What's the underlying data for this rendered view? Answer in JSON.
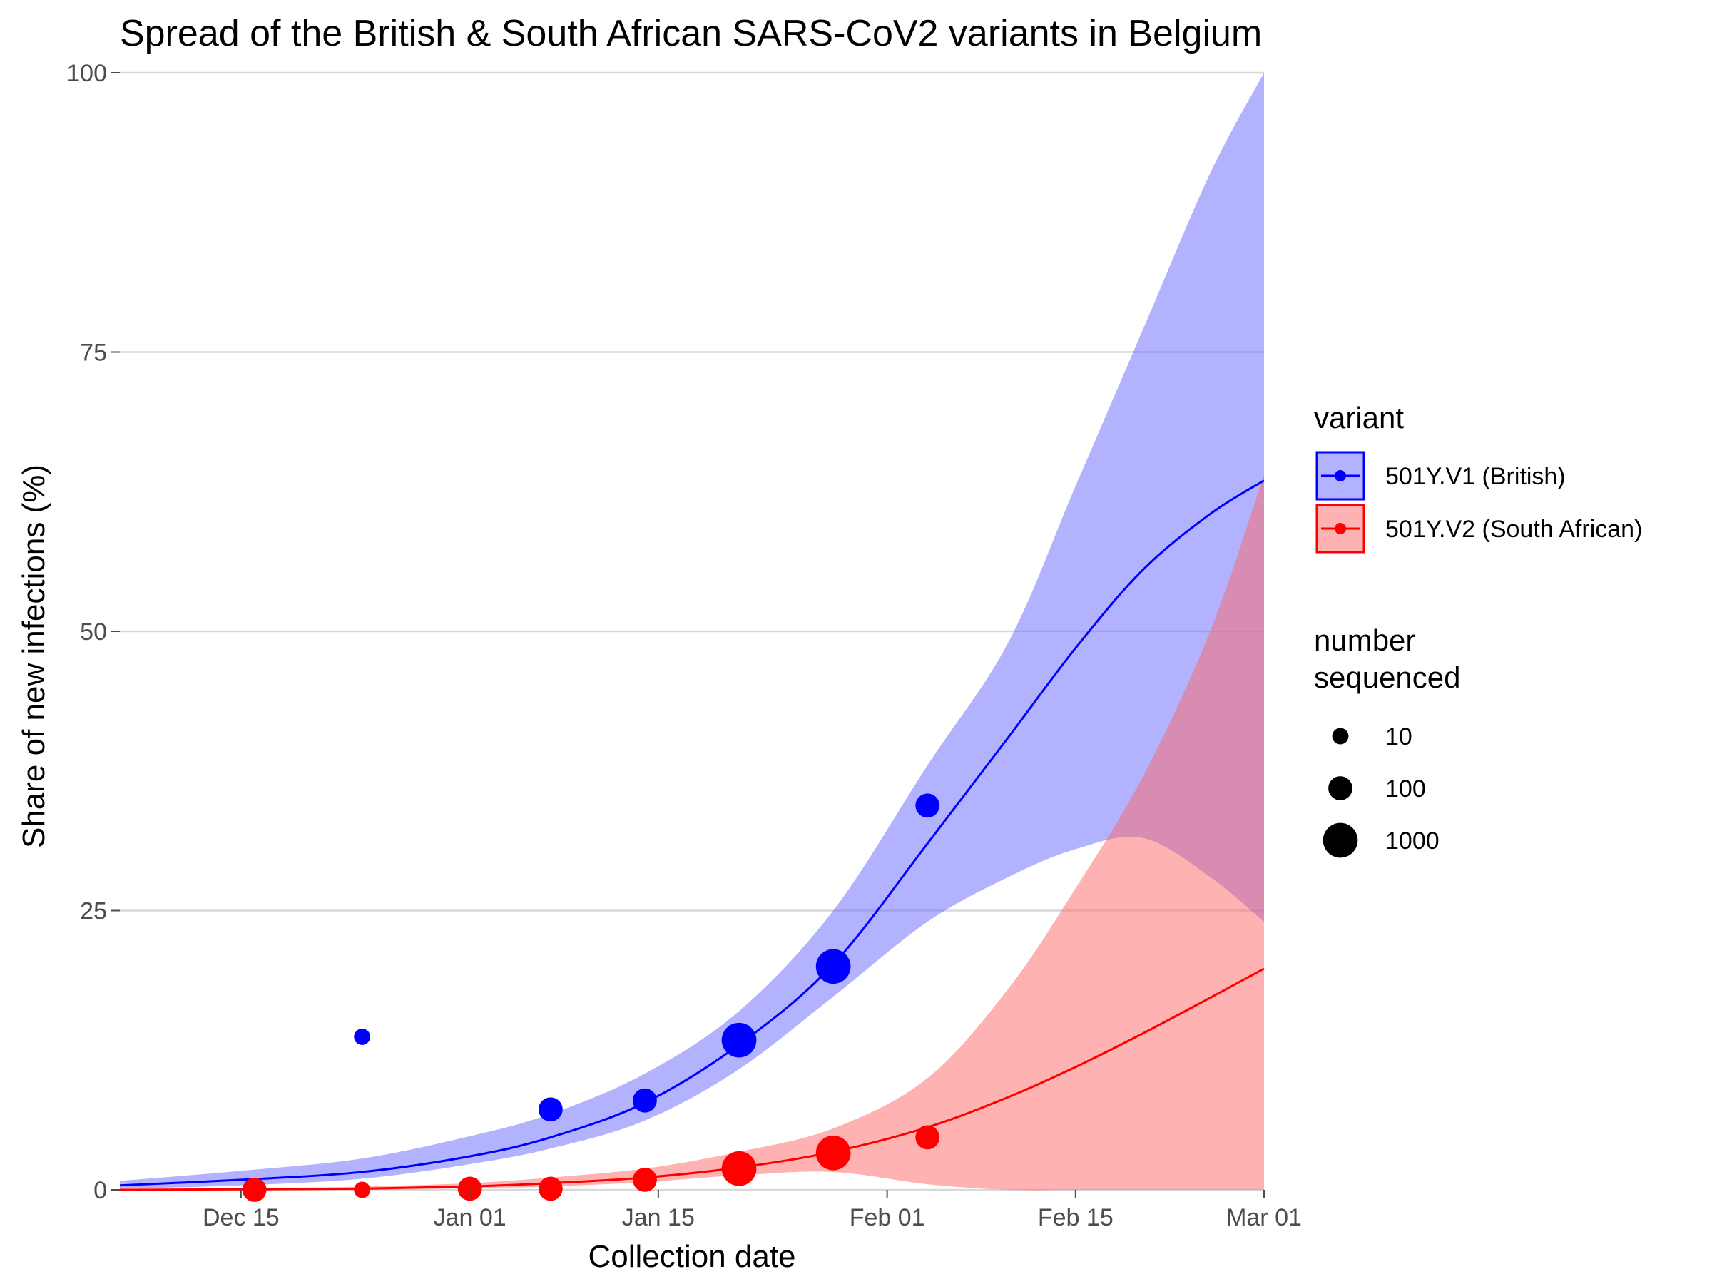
{
  "chart_data": {
    "type": "line",
    "title": "Spread of the British & South African SARS-CoV2 variants in Belgium",
    "xlabel": "Collection date",
    "ylabel": "Share of new infections (%)",
    "xlim": [
      "2020-12-06",
      "2021-03-01"
    ],
    "ylim": [
      0,
      100
    ],
    "x_ticks": [
      {
        "date": "2020-12-15",
        "label": "Dec 15"
      },
      {
        "date": "2021-01-01",
        "label": "Jan 01"
      },
      {
        "date": "2021-01-15",
        "label": "Jan 15"
      },
      {
        "date": "2021-02-01",
        "label": "Feb 01"
      },
      {
        "date": "2021-02-15",
        "label": "Feb 15"
      },
      {
        "date": "2021-03-01",
        "label": "Mar 01"
      }
    ],
    "y_ticks": [
      0,
      25,
      50,
      75,
      100
    ],
    "grid": "horizontal",
    "legend_placement": "right",
    "legend": {
      "variant_title": "variant",
      "size_title_lines": [
        "number",
        "sequenced"
      ],
      "size_entries": [
        {
          "label": "10",
          "n": 10
        },
        {
          "label": "100",
          "n": 100
        },
        {
          "label": "1000",
          "n": 1000
        }
      ]
    },
    "series": [
      {
        "name": "501Y.V1 (British)",
        "color": "#0000ff",
        "fill": "#6666ff",
        "fit": {
          "x": [
            "2020-12-06",
            "2020-12-15",
            "2020-12-24",
            "2021-01-01",
            "2021-01-07",
            "2021-01-14",
            "2021-01-21",
            "2021-01-28",
            "2021-02-04",
            "2021-02-10",
            "2021-02-15",
            "2021-02-20",
            "2021-02-25",
            "2021-03-01"
          ],
          "y": [
            0.4,
            0.9,
            1.6,
            3.0,
            4.7,
            7.8,
            13.0,
            20.2,
            31.0,
            40.5,
            48.5,
            55.5,
            60.5,
            63.5
          ],
          "lower": [
            0.1,
            0.4,
            1.0,
            2.3,
            3.7,
            6.2,
            10.8,
            17.3,
            24.0,
            28.0,
            30.5,
            31.5,
            28.0,
            24.0
          ],
          "upper": [
            0.8,
            1.7,
            2.8,
            4.8,
            6.8,
            10.4,
            16.0,
            25.0,
            38.0,
            49.0,
            63.0,
            77.0,
            91.0,
            100.0
          ]
        },
        "points": [
          {
            "x": "2020-12-16",
            "y": 0.0,
            "n": 10
          },
          {
            "x": "2020-12-24",
            "y": 13.7,
            "n": 10
          },
          {
            "x": "2021-01-07",
            "y": 7.2,
            "n": 100
          },
          {
            "x": "2021-01-14",
            "y": 8.0,
            "n": 100
          },
          {
            "x": "2021-01-21",
            "y": 13.4,
            "n": 1000
          },
          {
            "x": "2021-01-28",
            "y": 20.0,
            "n": 1000
          },
          {
            "x": "2021-02-04",
            "y": 34.4,
            "n": 100
          }
        ]
      },
      {
        "name": "501Y.V2 (South African)",
        "color": "#ff0000",
        "fill": "#ff6666",
        "fit": {
          "x": [
            "2020-12-06",
            "2020-12-15",
            "2020-12-24",
            "2021-01-01",
            "2021-01-07",
            "2021-01-14",
            "2021-01-21",
            "2021-01-28",
            "2021-02-04",
            "2021-02-10",
            "2021-02-15",
            "2021-02-20",
            "2021-02-25",
            "2021-03-01"
          ],
          "y": [
            0.0,
            0.05,
            0.1,
            0.3,
            0.6,
            1.1,
            2.0,
            3.4,
            5.6,
            8.3,
            11.0,
            14.0,
            17.2,
            19.8
          ],
          "lower": [
            0.0,
            0.0,
            0.0,
            0.15,
            0.3,
            0.7,
            1.3,
            1.6,
            0.5,
            0.0,
            0.0,
            0.0,
            0.0,
            0.0
          ],
          "upper": [
            0.0,
            0.1,
            0.3,
            0.6,
            1.1,
            1.9,
            3.4,
            5.5,
            10.0,
            18.0,
            27.0,
            37.0,
            50.0,
            64.0
          ]
        },
        "points": [
          {
            "x": "2020-12-16",
            "y": 0.0,
            "n": 100
          },
          {
            "x": "2020-12-24",
            "y": 0.0,
            "n": 10
          },
          {
            "x": "2021-01-01",
            "y": 0.1,
            "n": 100
          },
          {
            "x": "2021-01-07",
            "y": 0.1,
            "n": 100
          },
          {
            "x": "2021-01-14",
            "y": 0.9,
            "n": 100
          },
          {
            "x": "2021-01-21",
            "y": 1.9,
            "n": 1000
          },
          {
            "x": "2021-01-28",
            "y": 3.3,
            "n": 1000
          },
          {
            "x": "2021-02-04",
            "y": 4.7,
            "n": 100
          }
        ]
      }
    ]
  }
}
